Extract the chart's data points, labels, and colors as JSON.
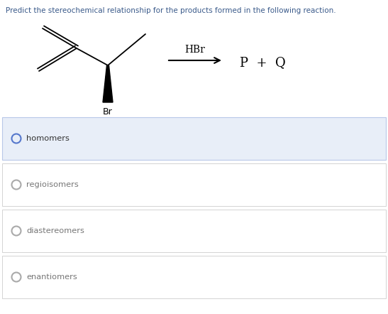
{
  "title": "Predict the stereochemical relationship for the products formed in the following reaction.",
  "title_color": "#3a5a8a",
  "title_fontsize": 7.5,
  "reagent": "HBr",
  "options": [
    "homomers",
    "regioisomers",
    "diastereomers",
    "enantiomers"
  ],
  "selected_option": 0,
  "selected_bg": "#e8eef8",
  "unselected_bg": "#ffffff",
  "radio_color_selected": "#5577cc",
  "radio_color_unselected": "#aaaaaa",
  "option_text_color_selected": "#333333",
  "option_text_color_unselected": "#777777",
  "border_color": "#cccccc",
  "background": "#ffffff",
  "fig_width": 5.47,
  "fig_height": 4.42,
  "dpi": 100
}
